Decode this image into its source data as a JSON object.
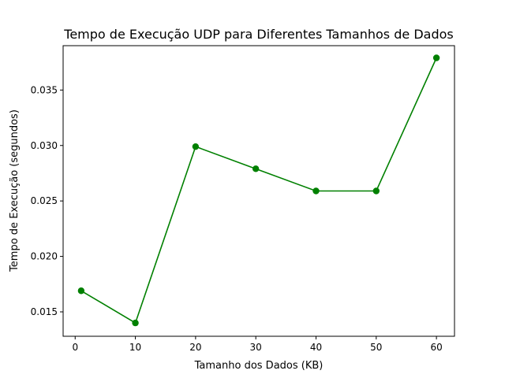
{
  "chart_data": {
    "type": "line",
    "title": "Tempo de Execução UDP para Diferentes Tamanhos de Dados",
    "xlabel": "Tamanho dos Dados (KB)",
    "ylabel": "Tempo de Execução (segundos)",
    "x": [
      1,
      10,
      20,
      30,
      40,
      50,
      60
    ],
    "series": [
      {
        "values": [
          0.0169,
          0.014,
          0.0299,
          0.0279,
          0.0259,
          0.0259,
          0.0379
        ],
        "color": "#008000",
        "marker": "circle"
      }
    ],
    "xlim": [
      -2,
      63
    ],
    "ylim": [
      0.0128,
      0.039
    ],
    "xticks": [
      0,
      10,
      20,
      30,
      40,
      50,
      60
    ],
    "xtick_labels": [
      "0",
      "10",
      "20",
      "30",
      "40",
      "50",
      "60"
    ],
    "yticks": [
      0.015,
      0.02,
      0.025,
      0.03,
      0.035
    ],
    "ytick_labels": [
      "0.015",
      "0.020",
      "0.025",
      "0.030",
      "0.035"
    ],
    "grid": false,
    "legend": false
  }
}
